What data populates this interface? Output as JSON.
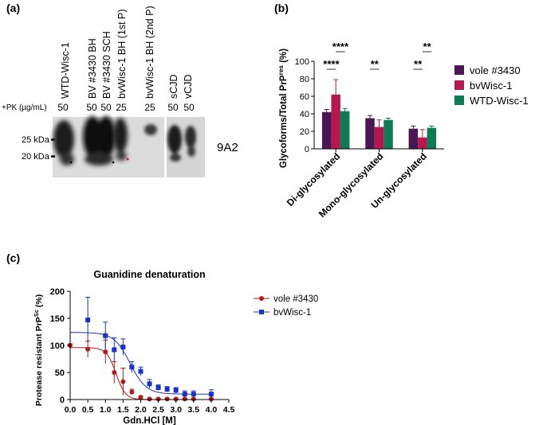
{
  "panels": {
    "a": "(a)",
    "b": "(b)",
    "c": "(c)"
  },
  "blot": {
    "pk_label": "+PK (µg/mL)",
    "antibody": "9A2",
    "lanes": [
      {
        "label": "WTD-Wisc-1",
        "pk": "50"
      },
      {
        "label": "BV #3430 BH",
        "pk": "50"
      },
      {
        "label": "BV #3430 SCH",
        "pk": "50"
      },
      {
        "label": "bvWisc-1 BH (1st P)",
        "pk": "25"
      },
      {
        "label": "bvWisc-1 BH (2nd P)",
        "pk": "25"
      },
      {
        "label": "sCJD",
        "pk": "50"
      },
      {
        "label": "vCJD",
        "pk": "50"
      }
    ],
    "markers": [
      {
        "label": "25 kDa"
      },
      {
        "label": "20 kDa"
      }
    ]
  },
  "chart_data": [
    {
      "type": "bar",
      "panel": "b",
      "title": "",
      "ylabel": "Glycoforms/Total PrPres (%)",
      "ylabel_main": "Glycoforms/Total PrP",
      "ylabel_sup": "res",
      "ylabel_tail": " (%)",
      "xlabel": "",
      "ylim": [
        0,
        100
      ],
      "yticks": [
        0,
        20,
        40,
        60,
        80,
        100
      ],
      "categories": [
        "Di-glycosylated",
        "Mono-glycosylated",
        "Un-glycosylated"
      ],
      "legend_position": "right",
      "series": [
        {
          "name": "vole #3430",
          "color": "#4a1654",
          "values": [
            42,
            35,
            23
          ],
          "errors": [
            3,
            3,
            3
          ]
        },
        {
          "name": "bvWisc-1",
          "color": "#b5174f",
          "values": [
            62,
            25,
            13
          ],
          "errors": [
            17,
            8,
            9
          ]
        },
        {
          "name": "WTD-Wisc-1",
          "color": "#0f7a53",
          "values": [
            43,
            33,
            24
          ],
          "errors": [
            3,
            2,
            2
          ]
        }
      ],
      "significance": [
        {
          "label": "****",
          "group": 0,
          "from": 0,
          "to": 1
        },
        {
          "label": "****",
          "group": 0,
          "from": 1,
          "to": 2
        },
        {
          "label": "**",
          "group": 1,
          "from": 0,
          "to": 1
        },
        {
          "label": "**",
          "group": 2,
          "from": 0,
          "to": 1
        },
        {
          "label": "**",
          "group": 2,
          "from": 1,
          "to": 2
        }
      ]
    },
    {
      "type": "scatter",
      "panel": "c",
      "title": "Guanidine denaturation",
      "xlabel": "Gdn.HCl [M]",
      "ylabel": "Protease resistant PrPSc (%)",
      "ylabel_main": "Protease resistant PrP",
      "ylabel_sup": "Sc",
      "ylabel_tail": " (%)",
      "xlim": [
        0,
        4.5
      ],
      "ylim": [
        0,
        200
      ],
      "xticks": [
        0.0,
        0.5,
        1.0,
        1.5,
        2.0,
        2.5,
        3.0,
        3.5,
        4.0,
        4.5
      ],
      "xtick_labels": [
        "0.0",
        "0.5",
        "1.0",
        "1.5",
        "2.0",
        "2.5",
        "3.0",
        "3.5",
        "4.0",
        "4.5"
      ],
      "yticks": [
        0,
        50,
        100,
        150,
        200
      ],
      "legend_position": "top-right",
      "series": [
        {
          "name": "vole #3430",
          "color": "#b01a1a",
          "marker": "circle",
          "x": [
            0,
            0.5,
            1.0,
            1.25,
            1.5,
            1.75,
            2.0,
            2.25,
            2.5,
            2.75,
            3.0,
            3.25,
            3.5,
            4.0
          ],
          "y": [
            100,
            93,
            88,
            50,
            33,
            14,
            4,
            1,
            1,
            1,
            1,
            1,
            1,
            1
          ],
          "err": [
            3,
            15,
            22,
            20,
            25,
            5,
            3,
            1,
            1,
            1,
            1,
            1,
            1,
            1
          ],
          "fit": {
            "top": 96,
            "bottom": 0,
            "mid": 1.3,
            "slope": 7.5
          }
        },
        {
          "name": "bvWisc-1",
          "color": "#1a33c4",
          "marker": "square",
          "x": [
            0.5,
            1.0,
            1.25,
            1.5,
            1.75,
            2.0,
            2.25,
            2.5,
            2.75,
            3.0,
            3.25,
            3.5,
            4.0
          ],
          "y": [
            147,
            118,
            92,
            97,
            60,
            52,
            29,
            22,
            19,
            17,
            10,
            10,
            10
          ],
          "err": [
            42,
            25,
            22,
            15,
            10,
            8,
            8,
            5,
            5,
            5,
            6,
            6,
            8
          ],
          "fit": {
            "top": 124,
            "bottom": 10,
            "mid": 1.7,
            "slope": 4.4
          }
        }
      ]
    }
  ]
}
